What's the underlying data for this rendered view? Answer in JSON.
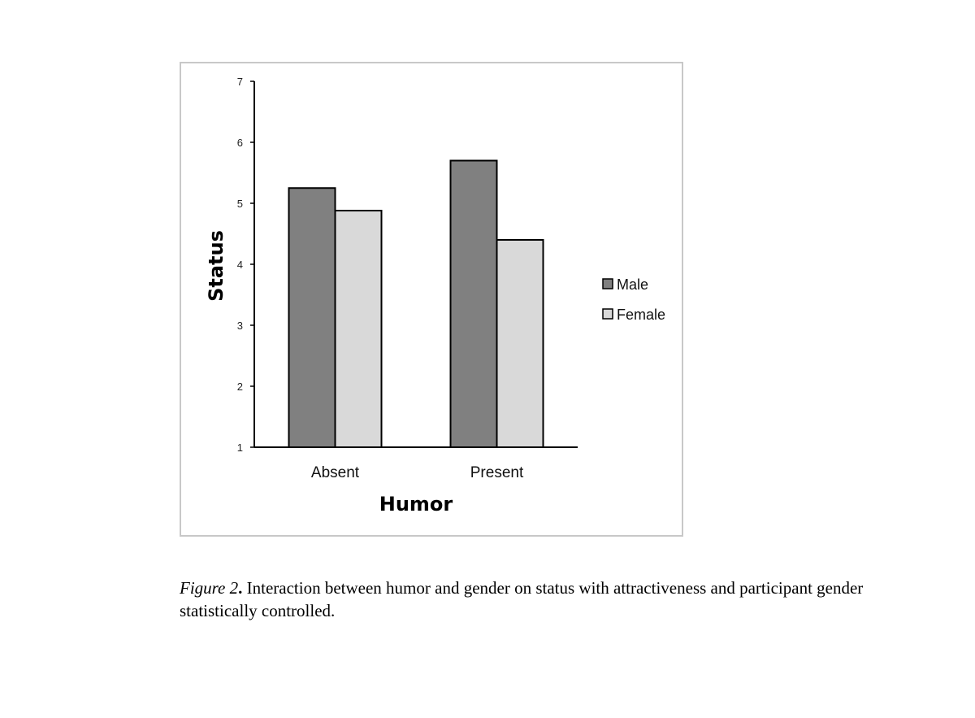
{
  "chart_data": {
    "type": "bar",
    "categories": [
      "Absent",
      "Present"
    ],
    "series": [
      {
        "name": "Male",
        "values": [
          5.25,
          5.7
        ],
        "color": "#808080"
      },
      {
        "name": "Female",
        "values": [
          4.88,
          4.4
        ],
        "color": "#d9d9d9"
      }
    ],
    "title": "",
    "xlabel": "Humor",
    "ylabel": "Status",
    "ylim": [
      1,
      7
    ],
    "yticks": [
      "1",
      "2",
      "3",
      "4",
      "5",
      "6",
      "7"
    ],
    "grid": false,
    "legend_position": "right"
  },
  "caption": {
    "label": "Figure 2",
    "separator": ".",
    "text": " Interaction between humor and gender on status with attractiveness and participant gender statistically controlled."
  }
}
